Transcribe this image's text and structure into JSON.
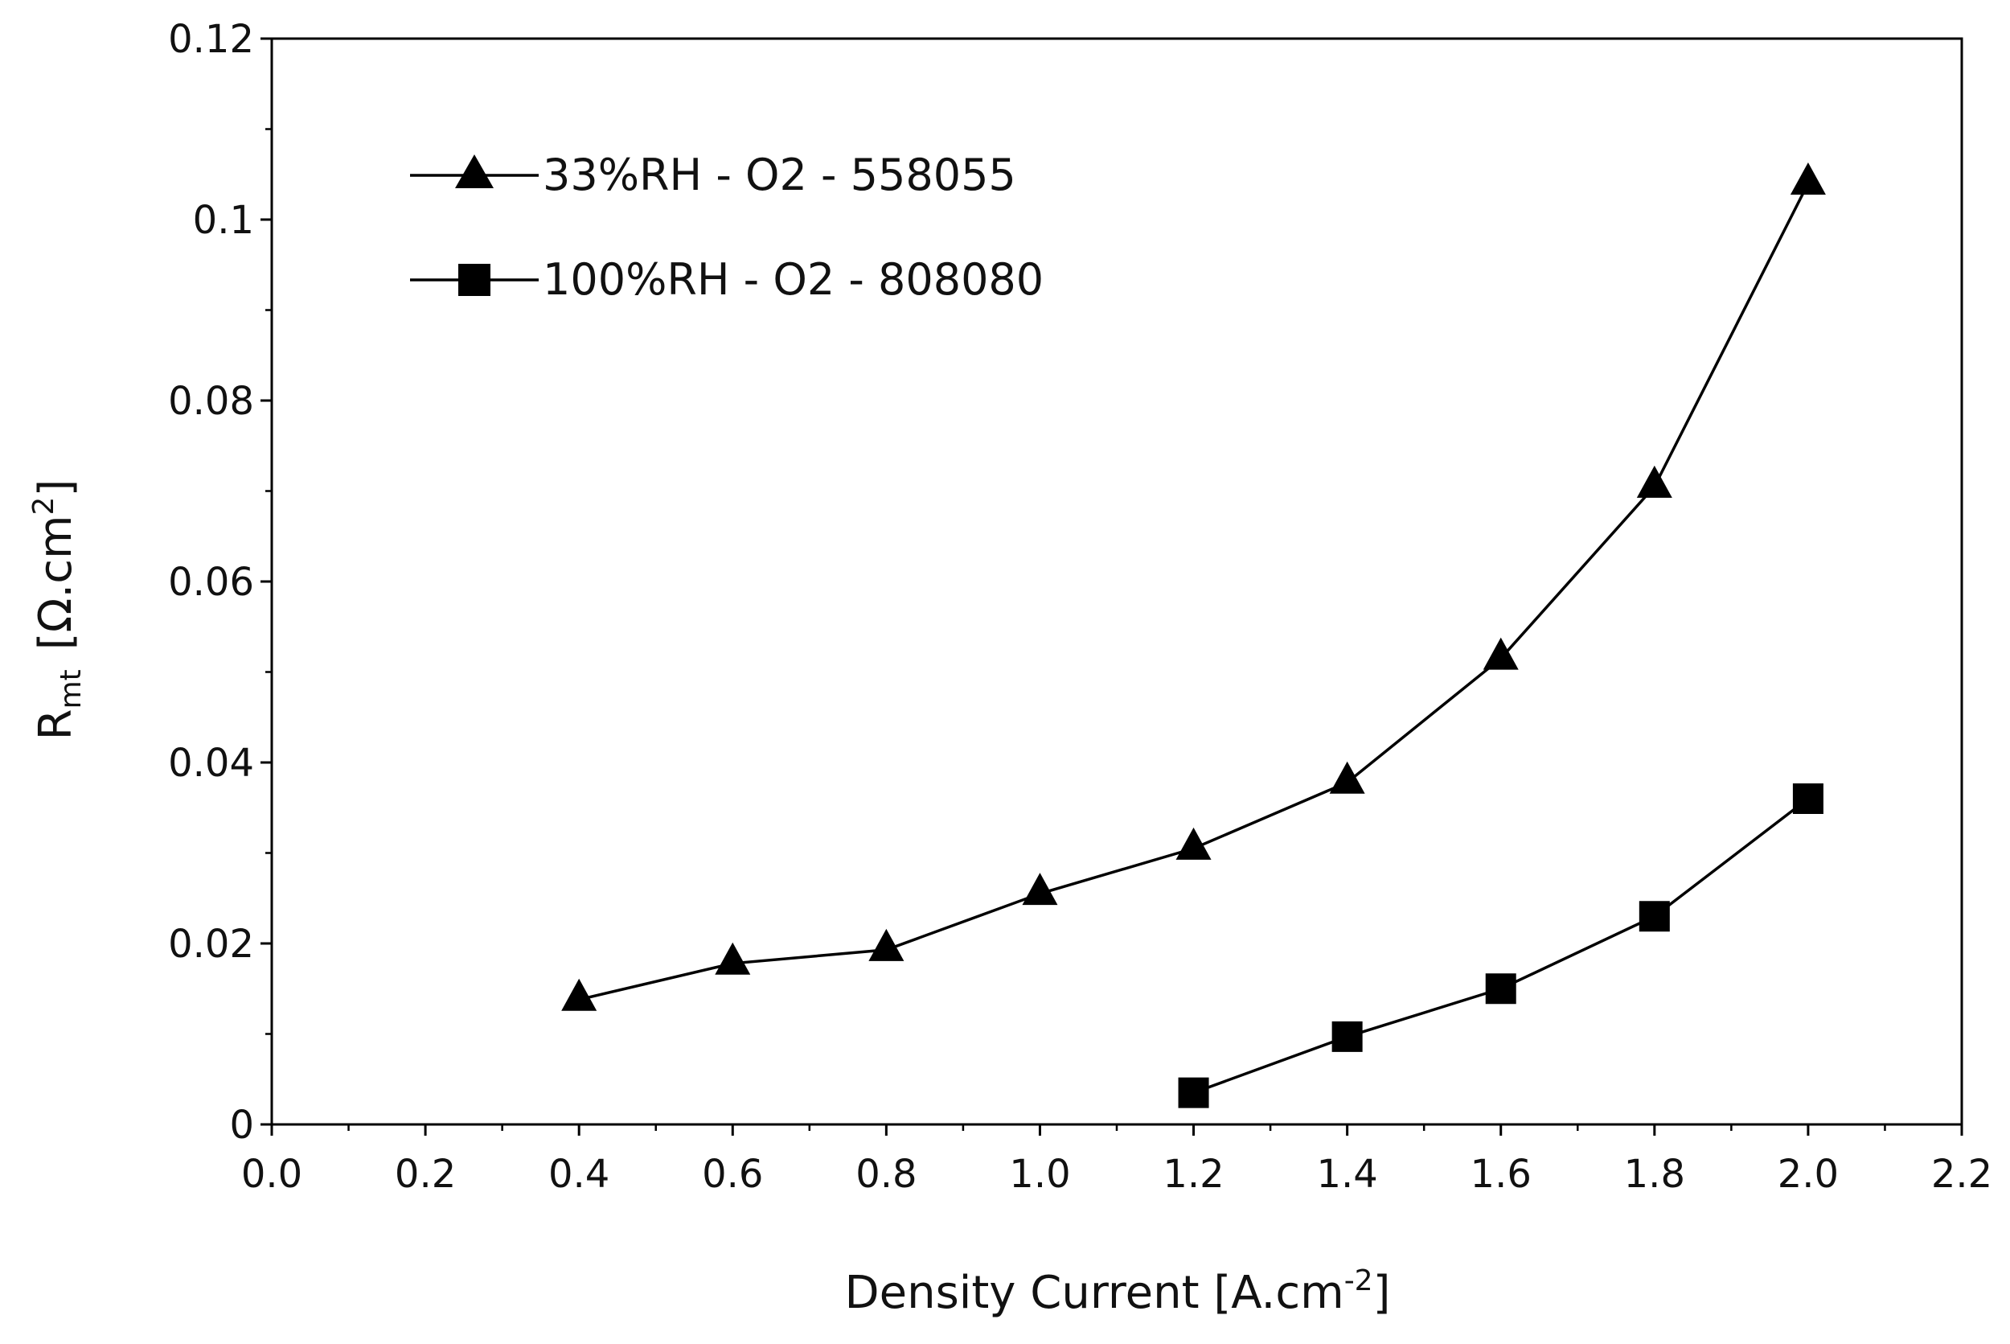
{
  "chart_data": {
    "type": "line",
    "title": "",
    "xlabel": {
      "main": "Density Current [A.cm",
      "sup": "-2",
      "tail": "]"
    },
    "ylabel": {
      "main": "R",
      "sub": "mt",
      "unit": "[Ω.cm",
      "sup": "2",
      "tail": "]"
    },
    "xlim": [
      0.0,
      2.2
    ],
    "ylim": [
      0,
      0.12
    ],
    "x_ticks": [
      "0.0",
      "0.2",
      "0.4",
      "0.6",
      "0.8",
      "1.0",
      "1.2",
      "1.4",
      "1.6",
      "1.8",
      "2.0",
      "2.2"
    ],
    "x_tick_values": [
      0.0,
      0.2,
      0.4,
      0.6,
      0.8,
      1.0,
      1.2,
      1.4,
      1.6,
      1.8,
      2.0,
      2.2
    ],
    "y_ticks": [
      "0",
      "0.02",
      "0.04",
      "0.06",
      "0.08",
      "0.1",
      "0.12"
    ],
    "y_tick_values": [
      0,
      0.02,
      0.04,
      0.06,
      0.08,
      0.1,
      0.12
    ],
    "grid": false,
    "legend_position": "top-left",
    "series": [
      {
        "name": "33%RH - O2 - 558055",
        "marker": "triangle",
        "color": "#000000",
        "x": [
          0.4,
          0.6,
          0.8,
          1.0,
          1.2,
          1.4,
          1.6,
          1.8,
          2.0
        ],
        "y": [
          0.0138,
          0.0178,
          0.0193,
          0.0255,
          0.0305,
          0.0378,
          0.0515,
          0.0705,
          0.104
        ]
      },
      {
        "name": "100%RH - O2 - 808080",
        "marker": "square",
        "color": "#000000",
        "x": [
          1.2,
          1.4,
          1.6,
          1.8,
          2.0
        ],
        "y": [
          0.0035,
          0.0097,
          0.015,
          0.023,
          0.036
        ]
      }
    ]
  }
}
